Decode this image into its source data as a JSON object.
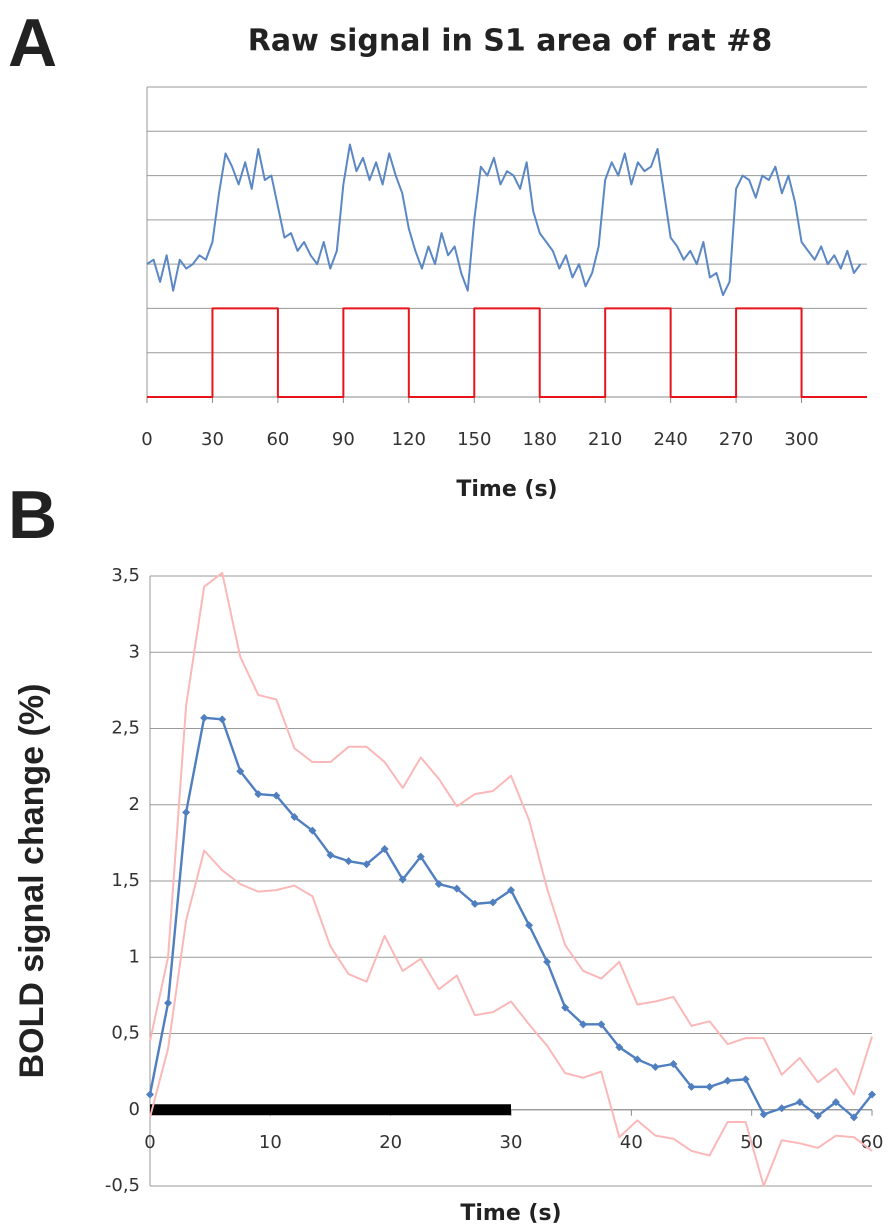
{
  "chart_data": [
    {
      "type": "line",
      "panel": "A",
      "title": "Raw signal in S1 area of rat #8",
      "x_label": "Time (s)",
      "xlim": [
        0,
        330
      ],
      "xticks": [
        0,
        30,
        60,
        90,
        120,
        150,
        180,
        210,
        240,
        270,
        300
      ],
      "ylim": [
        0,
        7
      ],
      "yticks": [
        0,
        1,
        2,
        3,
        4,
        5,
        6,
        7
      ],
      "ytick_labels": false,
      "grid": true,
      "series": [
        {
          "color": "#5b87c5",
          "markers": false,
          "x": [
            0,
            3,
            6,
            9,
            12,
            15,
            18,
            21,
            24,
            27,
            30,
            33,
            36,
            39,
            42,
            45,
            48,
            51,
            54,
            57,
            60,
            63,
            66,
            69,
            72,
            75,
            78,
            81,
            84,
            87,
            90,
            93,
            96,
            99,
            102,
            105,
            108,
            111,
            114,
            117,
            120,
            123,
            126,
            129,
            132,
            135,
            138,
            141,
            144,
            147,
            150,
            153,
            156,
            159,
            162,
            165,
            168,
            171,
            174,
            177,
            180,
            183,
            186,
            189,
            192,
            195,
            198,
            201,
            204,
            207,
            210,
            213,
            216,
            219,
            222,
            225,
            228,
            231,
            234,
            237,
            240,
            243,
            246,
            249,
            252,
            255,
            258,
            261,
            264,
            267,
            270,
            273,
            276,
            279,
            282,
            285,
            288,
            291,
            294,
            297,
            300,
            303,
            306,
            309,
            312,
            315,
            318,
            321,
            324,
            327
          ],
          "values": [
            3.0,
            3.1,
            2.6,
            3.2,
            2.4,
            3.1,
            2.9,
            3.0,
            3.2,
            3.1,
            3.5,
            4.6,
            5.5,
            5.2,
            4.8,
            5.3,
            4.7,
            5.6,
            4.9,
            5.0,
            4.3,
            3.6,
            3.7,
            3.3,
            3.5,
            3.2,
            3.0,
            3.5,
            2.9,
            3.3,
            4.8,
            5.7,
            5.1,
            5.4,
            4.9,
            5.3,
            4.8,
            5.5,
            5.0,
            4.6,
            3.8,
            3.3,
            2.9,
            3.4,
            3.0,
            3.7,
            3.2,
            3.4,
            2.8,
            2.4,
            4.0,
            5.2,
            5.0,
            5.4,
            4.8,
            5.1,
            5.0,
            4.7,
            5.3,
            4.2,
            3.7,
            3.5,
            3.3,
            2.9,
            3.2,
            2.7,
            3.0,
            2.5,
            2.8,
            3.4,
            4.9,
            5.3,
            5.0,
            5.5,
            4.8,
            5.3,
            5.1,
            5.2,
            5.6,
            4.6,
            3.6,
            3.4,
            3.1,
            3.3,
            3.0,
            3.5,
            2.7,
            2.8,
            2.3,
            2.6,
            4.7,
            5.0,
            4.9,
            4.5,
            5.0,
            4.9,
            5.2,
            4.6,
            5.0,
            4.4,
            3.5,
            3.3,
            3.1,
            3.4,
            3.0,
            3.2,
            2.9,
            3.3,
            2.8,
            3.0
          ]
        },
        {
          "color": "#e8141c",
          "markers": false,
          "x": [
            0,
            30,
            30,
            60,
            60,
            90,
            90,
            120,
            120,
            150,
            150,
            180,
            180,
            210,
            210,
            240,
            240,
            270,
            270,
            300,
            300,
            330
          ],
          "values": [
            0,
            0,
            2,
            2,
            0,
            0,
            2,
            2,
            0,
            0,
            2,
            2,
            0,
            0,
            2,
            2,
            0,
            0,
            2,
            2,
            0,
            0
          ]
        }
      ]
    },
    {
      "type": "line",
      "panel": "B",
      "y_label": "BOLD signal change (%)",
      "x_label": "Time (s)",
      "xlim": [
        0,
        60
      ],
      "xticks": [
        0,
        10,
        20,
        30,
        40,
        50,
        60
      ],
      "ylim": [
        -0.5,
        3.5
      ],
      "yticks": [
        {
          "value": -0.5,
          "label": "-0,5"
        },
        0,
        {
          "value": 0.5,
          "label": "0,5"
        },
        1,
        {
          "value": 1.5,
          "label": "1,5"
        },
        2,
        {
          "value": 2.5,
          "label": "2,5"
        },
        3,
        {
          "value": 3.5,
          "label": "3,5"
        }
      ],
      "ytick_labels": true,
      "grid": true,
      "x": [
        0,
        1.5,
        3,
        4.5,
        6,
        7.5,
        9,
        10.5,
        12,
        13.5,
        15,
        16.5,
        18,
        19.5,
        21,
        22.5,
        24,
        25.5,
        27,
        28.5,
        30,
        31.5,
        33,
        34.5,
        36,
        37.5,
        39,
        40.5,
        42,
        43.5,
        45,
        46.5,
        48,
        49.5,
        51,
        52.5,
        54,
        55.5,
        57,
        58.5,
        60
      ],
      "stimulus_bar": {
        "x": [
          0,
          30
        ],
        "y": 0,
        "color": "#000000"
      },
      "series": [
        {
          "color": "#fbb8b8",
          "markers": false,
          "values": [
            0.45,
            1.0,
            2.65,
            3.43,
            3.52,
            2.97,
            2.72,
            2.69,
            2.37,
            2.28,
            2.28,
            2.38,
            2.38,
            2.28,
            2.11,
            2.31,
            2.17,
            1.99,
            2.07,
            2.09,
            2.19,
            1.9,
            1.45,
            1.08,
            0.91,
            0.86,
            0.97,
            0.69,
            0.71,
            0.74,
            0.55,
            0.58,
            0.43,
            0.47,
            0.47,
            0.23,
            0.34,
            0.18,
            0.27,
            0.1,
            0.48
          ]
        },
        {
          "color": "#fbb8b8",
          "markers": false,
          "values": [
            -0.05,
            0.4,
            1.24,
            1.7,
            1.57,
            1.48,
            1.43,
            1.44,
            1.47,
            1.4,
            1.07,
            0.89,
            0.84,
            1.14,
            0.91,
            0.99,
            0.79,
            0.88,
            0.62,
            0.64,
            0.71,
            0.56,
            0.42,
            0.24,
            0.21,
            0.25,
            -0.18,
            -0.07,
            -0.17,
            -0.19,
            -0.27,
            -0.3,
            -0.08,
            -0.08,
            -0.5,
            -0.2,
            -0.22,
            -0.25,
            -0.17,
            -0.18,
            -0.27
          ]
        },
        {
          "color": "#4f7fbf",
          "markers": true,
          "values": [
            0.1,
            0.7,
            1.95,
            2.57,
            2.56,
            2.22,
            2.07,
            2.06,
            1.92,
            1.83,
            1.67,
            1.63,
            1.61,
            1.71,
            1.51,
            1.66,
            1.48,
            1.45,
            1.35,
            1.36,
            1.44,
            1.21,
            0.97,
            0.67,
            0.56,
            0.56,
            0.41,
            0.33,
            0.28,
            0.3,
            0.15,
            0.15,
            0.19,
            0.2,
            -0.03,
            0.01,
            0.05,
            -0.04,
            0.05,
            -0.05,
            0.1
          ]
        }
      ]
    }
  ]
}
